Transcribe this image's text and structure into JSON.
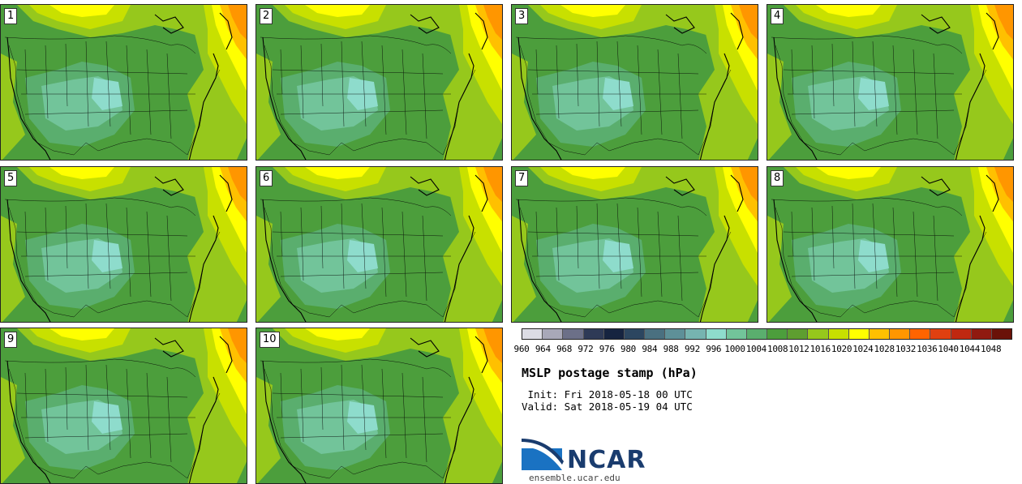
{
  "title": "MSLP postage stamp (hPa)",
  "init": " Init: Fri 2018-05-18 00 UTC",
  "valid": "Valid: Sat 2018-05-19 04 UTC",
  "site": "ensemble.ucar.edu",
  "logo_text": "NCAR",
  "logo_icon": "ncar-logo-icon",
  "members": [
    "1",
    "2",
    "3",
    "4",
    "5",
    "6",
    "7",
    "8",
    "9",
    "10"
  ],
  "colorbar": {
    "ticks": [
      "960",
      "964",
      "968",
      "972",
      "976",
      "980",
      "984",
      "988",
      "992",
      "996",
      "1000",
      "1004",
      "1008",
      "1012",
      "1016",
      "1020",
      "1024",
      "1028",
      "1032",
      "1036",
      "1040",
      "1044",
      "1048"
    ],
    "colors": [
      "#dcdce4",
      "#a8a8b8",
      "#6c7088",
      "#2e3a56",
      "#162440",
      "#2c4660",
      "#4a7080",
      "#5e9098",
      "#76b4b0",
      "#8edccc",
      "#72c49a",
      "#5aae6e",
      "#4c9e3c",
      "#5e9e30",
      "#96c81c",
      "#c8e000",
      "#ffff00",
      "#ffc000",
      "#ff9600",
      "#ff6400",
      "#e04010",
      "#c02810",
      "#901a10",
      "#6a1208"
    ]
  }
}
